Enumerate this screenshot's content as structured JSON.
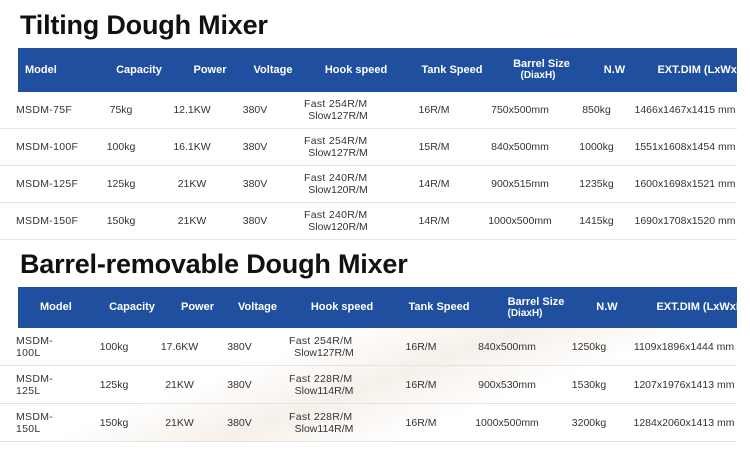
{
  "headers": [
    "Model",
    "Capacity",
    "Power",
    "Voltage",
    "Hook speed",
    "Tank Speed",
    "Barrel Size",
    "(DiaxH)",
    "N.W",
    "EXT.DIM (LxWxH)"
  ],
  "tilting": {
    "title": "Tilting Dough Mixer",
    "rows": [
      [
        "MSDM-75F",
        "75kg",
        "12.1KW",
        "380V",
        "Fast 254R/M",
        "Slow127R/M",
        "16R/M",
        "750x500mm",
        "850kg",
        "1466x1467x1415 mm"
      ],
      [
        "MSDM-100F",
        "100kg",
        "16.1KW",
        "380V",
        "Fast 254R/M",
        "Slow127R/M",
        "15R/M",
        "840x500mm",
        "1000kg",
        "1551x1608x1454 mm"
      ],
      [
        "MSDM-125F",
        "125kg",
        "21KW",
        "380V",
        "Fast 240R/M",
        "Slow120R/M",
        "14R/M",
        "900x515mm",
        "1235kg",
        "1600x1698x1521 mm"
      ],
      [
        "MSDM-150F",
        "150kg",
        "21KW",
        "380V",
        "Fast 240R/M",
        "Slow120R/M",
        "14R/M",
        "1000x500mm",
        "1415kg",
        "1690x1708x1520 mm"
      ]
    ]
  },
  "removable": {
    "title": "Barrel-removable Dough Mixer",
    "rows": [
      [
        "MSDM-100L",
        "100kg",
        "17.6KW",
        "380V",
        "Fast 254R/M",
        "Slow127R/M",
        "16R/M",
        "840x500mm",
        "1250kg",
        "1109x1896x1444 mm"
      ],
      [
        "MSDM-125L",
        "125kg",
        "21KW",
        "380V",
        "Fast 228R/M",
        "Slow114R/M",
        "16R/M",
        "900x530mm",
        "1530kg",
        "1207x1976x1413 mm"
      ],
      [
        "MSDM-150L",
        "150kg",
        "21KW",
        "380V",
        "Fast 228R/M",
        "Slow114R/M",
        "16R/M",
        "1000x500mm",
        "3200kg",
        "1284x2060x1413 mm"
      ]
    ]
  },
  "colors": {
    "header_bg": "#1f4f9e",
    "header_text": "#ffffff"
  }
}
